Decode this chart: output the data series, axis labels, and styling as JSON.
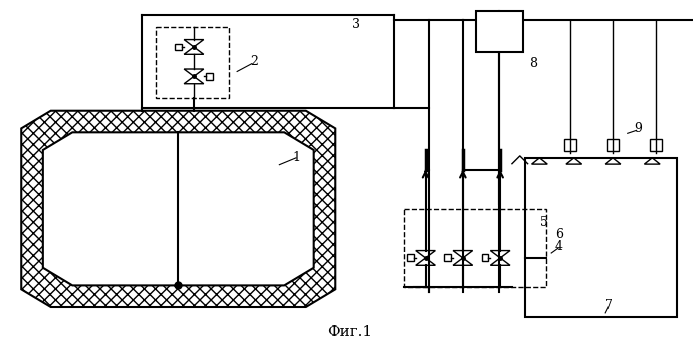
{
  "bg_color": "#ffffff",
  "line_color": "#000000",
  "fig_width": 7.0,
  "fig_height": 3.43,
  "caption": "Фиг.1",
  "caption_fontsize": 11,
  "label_fontsize": 9
}
